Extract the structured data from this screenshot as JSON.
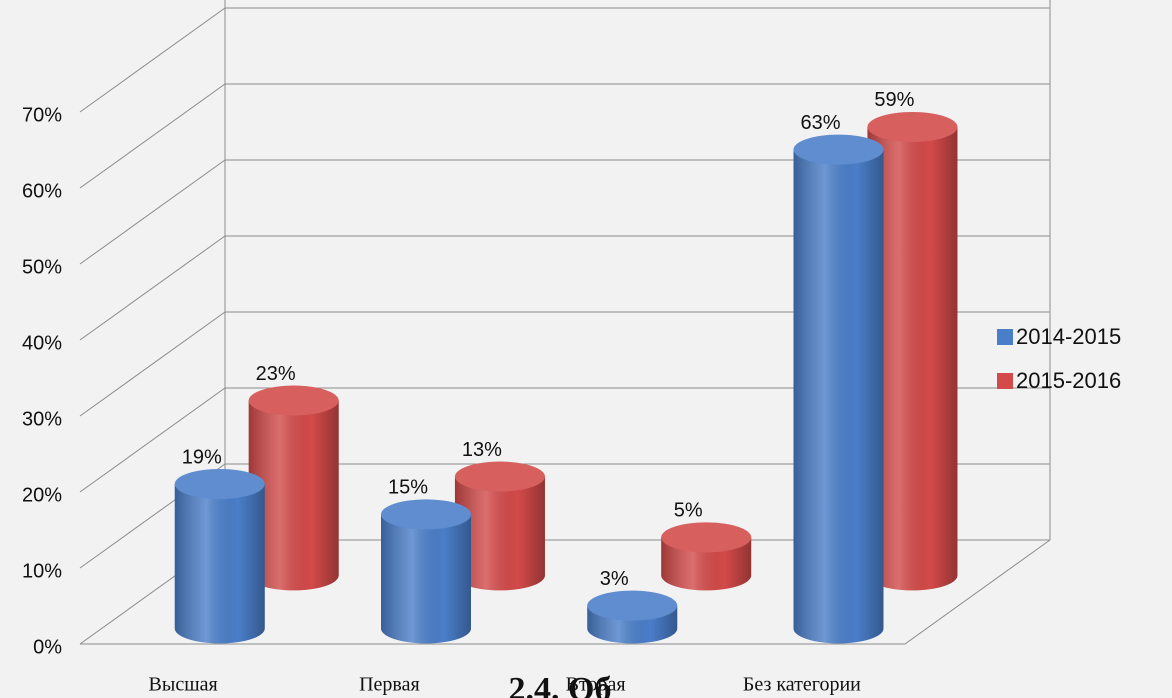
{
  "chart_data": {
    "type": "bar3d",
    "categories": [
      "Высшая",
      "Первая",
      "Вторая",
      "Без категории"
    ],
    "series": [
      {
        "name": "2014-2015",
        "color": "#4a7ec9",
        "values": [
          19,
          15,
          3,
          63
        ],
        "value_labels": [
          "19%",
          "15%",
          "3%",
          "63%"
        ]
      },
      {
        "name": "2015-2016",
        "color": "#d24a49",
        "values": [
          23,
          13,
          5,
          59
        ],
        "value_labels": [
          "23%",
          "13%",
          "5%",
          "59%"
        ]
      }
    ],
    "ylim": [
      0,
      70
    ],
    "yticks": [
      {
        "value": 0,
        "label": "0%"
      },
      {
        "value": 10,
        "label": "10%"
      },
      {
        "value": 20,
        "label": "20%"
      },
      {
        "value": 30,
        "label": "30%"
      },
      {
        "value": 40,
        "label": "40%"
      },
      {
        "value": 50,
        "label": "50%"
      },
      {
        "value": 60,
        "label": "60%"
      },
      {
        "value": 70,
        "label": "70%"
      }
    ],
    "grid": true,
    "legend": "right",
    "caption": "2.4. Об"
  }
}
